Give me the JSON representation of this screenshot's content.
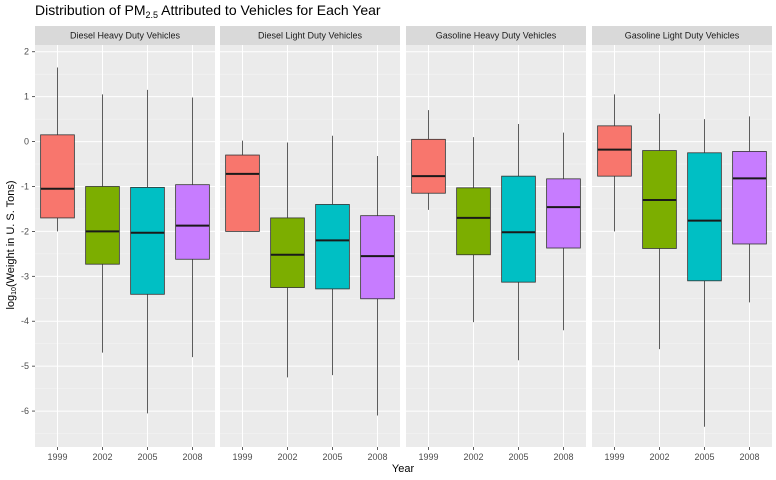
{
  "chart_data": {
    "type": "boxplot",
    "title": {
      "prefix": "Distribution of PM",
      "subscript": "2.5",
      "suffix": " Attributed to Vehicles for Each Year"
    },
    "xlabel": "Year",
    "ylabel": {
      "prefix": "log",
      "subscript": "10",
      "suffix": "(Weight in U. S. Tons)"
    },
    "ylim": [
      -6.8,
      2.15
    ],
    "yticks": [
      2,
      1,
      0,
      -1,
      -2,
      -3,
      -4,
      -5,
      -6
    ],
    "categories": [
      "1999",
      "2002",
      "2005",
      "2008"
    ],
    "colors": {
      "1999": "#F8766D",
      "2002": "#7CAE00",
      "2005": "#00BFC4",
      "2008": "#C77CFF"
    },
    "grid": true,
    "panels": [
      {
        "name": "Diesel Heavy Duty Vehicles",
        "boxes": [
          {
            "year": "1999",
            "min": -2.0,
            "q1": -1.7,
            "median": -1.05,
            "q3": 0.15,
            "max": 1.65
          },
          {
            "year": "2002",
            "min": -4.7,
            "q1": -2.73,
            "median": -2.0,
            "q3": -1.0,
            "max": 1.05
          },
          {
            "year": "2005",
            "min": -6.05,
            "q1": -3.4,
            "median": -2.03,
            "q3": -1.02,
            "max": 1.15
          },
          {
            "year": "2008",
            "min": -4.8,
            "q1": -2.62,
            "median": -1.87,
            "q3": -0.96,
            "max": 0.98
          }
        ]
      },
      {
        "name": "Diesel Light Duty Vehicles",
        "boxes": [
          {
            "year": "1999",
            "min": -2.0,
            "q1": -2.0,
            "median": -0.72,
            "q3": -0.3,
            "max": 0.02
          },
          {
            "year": "2002",
            "min": -5.25,
            "q1": -3.25,
            "median": -2.52,
            "q3": -1.7,
            "max": -0.02
          },
          {
            "year": "2005",
            "min": -5.2,
            "q1": -3.28,
            "median": -2.2,
            "q3": -1.4,
            "max": 0.13
          },
          {
            "year": "2008",
            "min": -6.1,
            "q1": -3.5,
            "median": -2.55,
            "q3": -1.65,
            "max": -0.32
          }
        ]
      },
      {
        "name": "Gasoline Heavy Duty Vehicles",
        "boxes": [
          {
            "year": "1999",
            "min": -1.52,
            "q1": -1.15,
            "median": -0.77,
            "q3": 0.05,
            "max": 0.7
          },
          {
            "year": "2002",
            "min": -4.02,
            "q1": -2.52,
            "median": -1.7,
            "q3": -1.03,
            "max": 0.1
          },
          {
            "year": "2005",
            "min": -4.87,
            "q1": -3.13,
            "median": -2.02,
            "q3": -0.77,
            "max": 0.39
          },
          {
            "year": "2008",
            "min": -4.2,
            "q1": -2.37,
            "median": -1.46,
            "q3": -0.83,
            "max": 0.2
          }
        ]
      },
      {
        "name": "Gasoline Light Duty Vehicles",
        "boxes": [
          {
            "year": "1999",
            "min": -2.0,
            "q1": -0.77,
            "median": -0.18,
            "q3": 0.35,
            "max": 1.05
          },
          {
            "year": "2002",
            "min": -4.62,
            "q1": -2.38,
            "median": -1.3,
            "q3": -0.2,
            "max": 0.62
          },
          {
            "year": "2005",
            "min": -6.35,
            "q1": -3.1,
            "median": -1.76,
            "q3": -0.25,
            "max": 0.5
          },
          {
            "year": "2008",
            "min": -3.58,
            "q1": -2.28,
            "median": -0.82,
            "q3": -0.22,
            "max": 0.56
          }
        ]
      }
    ]
  }
}
